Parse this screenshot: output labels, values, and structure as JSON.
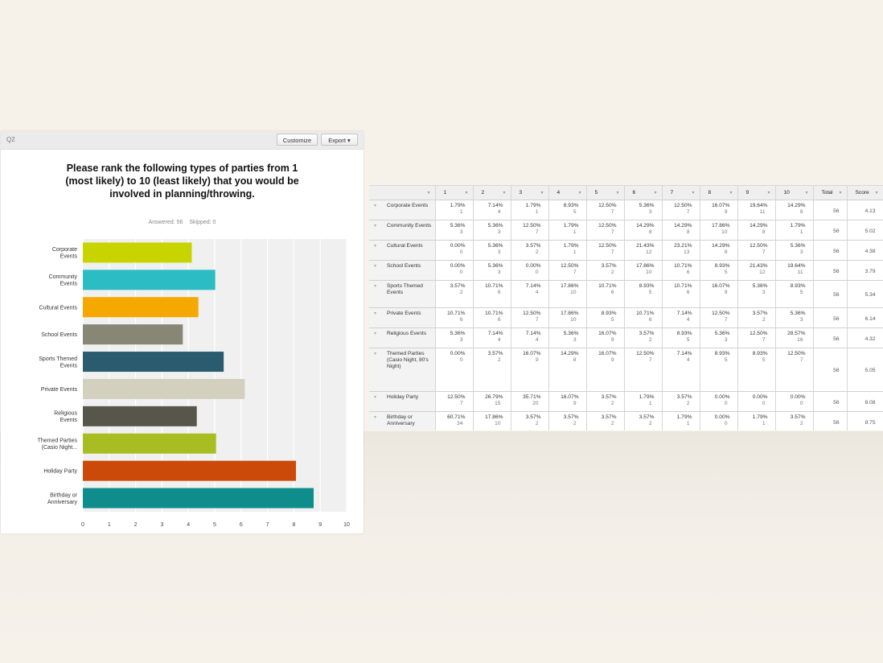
{
  "panel": {
    "question_label": "Q2",
    "customize_label": "Customize",
    "export_label": "Export ▾",
    "title": "Please rank the following types of parties from 1 (most likely) to 10 (least likely) that you would be involved in planning/throwing.",
    "answered_label": "Answered: 56",
    "skipped_label": "Skipped: 0"
  },
  "chart_data": {
    "type": "bar",
    "orientation": "horizontal",
    "title": "Please rank the following types of parties from 1 (most likely) to 10 (least likely) that you would be involved in planning/throwing.",
    "categories": [
      [
        "Corporate",
        "Events"
      ],
      [
        "Community",
        "Events"
      ],
      [
        "Cultural Events"
      ],
      [
        "School Events"
      ],
      [
        "Sports Themed",
        "Events"
      ],
      [
        "Private Events"
      ],
      [
        "Religious",
        "Events"
      ],
      [
        "Themed Parties",
        "(Casio Night..."
      ],
      [
        "Holiday Party"
      ],
      [
        "Birthday or",
        "Anniversary"
      ]
    ],
    "values": [
      4.13,
      5.02,
      4.38,
      3.79,
      5.34,
      6.14,
      4.32,
      5.05,
      8.08,
      8.75
    ],
    "colors": [
      "#c8d400",
      "#2bbcc4",
      "#f5a800",
      "#888775",
      "#2b5b6e",
      "#d3d0bf",
      "#57564b",
      "#a7bd21",
      "#cb4a0a",
      "#0f8c8c"
    ],
    "xlim": [
      0,
      10
    ],
    "xticks": [
      "0",
      "1",
      "2",
      "3",
      "4",
      "5",
      "6",
      "7",
      "8",
      "9",
      "10"
    ],
    "grid": true
  },
  "table": {
    "columns": [
      "",
      "1",
      "2",
      "3",
      "4",
      "5",
      "6",
      "7",
      "8",
      "9",
      "10",
      "Total",
      "Score"
    ],
    "rows": [
      {
        "name": "Corporate Events",
        "cells": [
          [
            "1.79%",
            "1"
          ],
          [
            "7.14%",
            "4"
          ],
          [
            "1.79%",
            "1"
          ],
          [
            "8.93%",
            "5"
          ],
          [
            "12.50%",
            "7"
          ],
          [
            "5.36%",
            "3"
          ],
          [
            "12.50%",
            "7"
          ],
          [
            "16.07%",
            "9"
          ],
          [
            "19.64%",
            "11"
          ],
          [
            "14.29%",
            "8"
          ]
        ],
        "total": "56",
        "score": "4.13"
      },
      {
        "name": "Community Events",
        "cells": [
          [
            "5.36%",
            "3"
          ],
          [
            "5.36%",
            "3"
          ],
          [
            "12.50%",
            "7"
          ],
          [
            "1.79%",
            "1"
          ],
          [
            "12.50%",
            "7"
          ],
          [
            "14.29%",
            "8"
          ],
          [
            "14.29%",
            "8"
          ],
          [
            "17.86%",
            "10"
          ],
          [
            "14.29%",
            "8"
          ],
          [
            "1.79%",
            "1"
          ]
        ],
        "total": "56",
        "score": "5.02"
      },
      {
        "name": "Cultural Events",
        "cells": [
          [
            "0.00%",
            "0"
          ],
          [
            "5.36%",
            "3"
          ],
          [
            "3.57%",
            "2"
          ],
          [
            "1.79%",
            "1"
          ],
          [
            "12.50%",
            "7"
          ],
          [
            "21.43%",
            "12"
          ],
          [
            "23.21%",
            "13"
          ],
          [
            "14.29%",
            "8"
          ],
          [
            "12.50%",
            "7"
          ],
          [
            "5.36%",
            "3"
          ]
        ],
        "total": "56",
        "score": "4.38"
      },
      {
        "name": "School Events",
        "cells": [
          [
            "0.00%",
            "0"
          ],
          [
            "5.36%",
            "3"
          ],
          [
            "0.00%",
            "0"
          ],
          [
            "12.50%",
            "7"
          ],
          [
            "3.57%",
            "2"
          ],
          [
            "17.86%",
            "10"
          ],
          [
            "10.71%",
            "6"
          ],
          [
            "8.93%",
            "5"
          ],
          [
            "21.43%",
            "12"
          ],
          [
            "19.64%",
            "11"
          ]
        ],
        "total": "56",
        "score": "3.79"
      },
      {
        "name": "Sports Themed Events",
        "cells": [
          [
            "3.57%",
            "2"
          ],
          [
            "10.71%",
            "6"
          ],
          [
            "7.14%",
            "4"
          ],
          [
            "17.86%",
            "10"
          ],
          [
            "10.71%",
            "6"
          ],
          [
            "8.93%",
            "5"
          ],
          [
            "10.71%",
            "6"
          ],
          [
            "16.07%",
            "9"
          ],
          [
            "5.36%",
            "3"
          ],
          [
            "8.93%",
            "5"
          ]
        ],
        "total": "56",
        "score": "5.34"
      },
      {
        "name": "Private Events",
        "cells": [
          [
            "10.71%",
            "6"
          ],
          [
            "10.71%",
            "6"
          ],
          [
            "12.50%",
            "7"
          ],
          [
            "17.86%",
            "10"
          ],
          [
            "8.93%",
            "5"
          ],
          [
            "10.71%",
            "6"
          ],
          [
            "7.14%",
            "4"
          ],
          [
            "12.50%",
            "7"
          ],
          [
            "3.57%",
            "2"
          ],
          [
            "5.36%",
            "3"
          ]
        ],
        "total": "56",
        "score": "6.14"
      },
      {
        "name": "Religious Events",
        "cells": [
          [
            "5.36%",
            "3"
          ],
          [
            "7.14%",
            "4"
          ],
          [
            "7.14%",
            "4"
          ],
          [
            "5.36%",
            "3"
          ],
          [
            "16.07%",
            "9"
          ],
          [
            "3.57%",
            "2"
          ],
          [
            "8.93%",
            "5"
          ],
          [
            "5.36%",
            "3"
          ],
          [
            "12.50%",
            "7"
          ],
          [
            "28.57%",
            "16"
          ]
        ],
        "total": "56",
        "score": "4.32"
      },
      {
        "name": "Themed Parties (Casio Night, 80's Night)",
        "cells": [
          [
            "0.00%",
            "0"
          ],
          [
            "3.57%",
            "2"
          ],
          [
            "16.07%",
            "9"
          ],
          [
            "14.29%",
            "8"
          ],
          [
            "16.07%",
            "9"
          ],
          [
            "12.50%",
            "7"
          ],
          [
            "7.14%",
            "4"
          ],
          [
            "8.93%",
            "5"
          ],
          [
            "8.93%",
            "5"
          ],
          [
            "12.50%",
            "7"
          ]
        ],
        "total": "56",
        "score": "5.05"
      },
      {
        "name": "Holiday Party",
        "cells": [
          [
            "12.50%",
            "7"
          ],
          [
            "26.79%",
            "15"
          ],
          [
            "35.71%",
            "20"
          ],
          [
            "16.07%",
            "9"
          ],
          [
            "3.57%",
            "2"
          ],
          [
            "1.79%",
            "1"
          ],
          [
            "3.57%",
            "2"
          ],
          [
            "0.00%",
            "0"
          ],
          [
            "0.00%",
            "0"
          ],
          [
            "0.00%",
            "0"
          ]
        ],
        "total": "56",
        "score": "8.08"
      },
      {
        "name": "Birthday or Anniversary",
        "cells": [
          [
            "60.71%",
            "34"
          ],
          [
            "17.86%",
            "10"
          ],
          [
            "3.57%",
            "2"
          ],
          [
            "3.57%",
            "2"
          ],
          [
            "3.57%",
            "2"
          ],
          [
            "3.57%",
            "2"
          ],
          [
            "1.79%",
            "1"
          ],
          [
            "0.00%",
            "0"
          ],
          [
            "1.79%",
            "1"
          ],
          [
            "3.57%",
            "2"
          ]
        ],
        "total": "56",
        "score": "8.75"
      }
    ]
  }
}
